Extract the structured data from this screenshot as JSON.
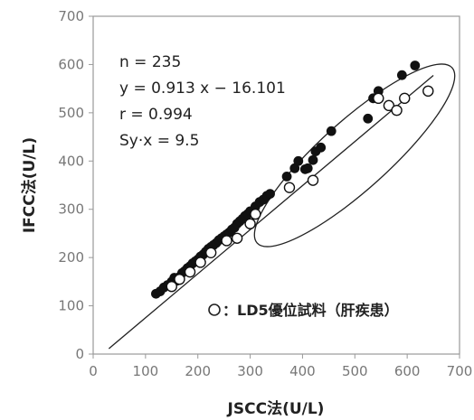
{
  "chart_data": {
    "type": "scatter",
    "xlabel": "JSCC法(U/L)",
    "ylabel": "IFCC法(U/L)",
    "xlim": [
      0,
      700
    ],
    "ylim": [
      0,
      700
    ],
    "x_ticks": [
      "0",
      "100",
      "200",
      "300",
      "400",
      "500",
      "600",
      "700"
    ],
    "y_ticks": [
      "0",
      "100",
      "200",
      "300",
      "400",
      "500",
      "600",
      "700"
    ],
    "grid": false,
    "stats": {
      "n": "n = 235",
      "equation": "y = 0.913 x − 16.101",
      "r": "r = 0.994",
      "syx": "Sy·x = 9.5"
    },
    "legend_text": "：LD5優位試料（肝疾患）",
    "regression": {
      "slope": 0.913,
      "intercept": -16.101,
      "x_range": [
        30,
        650
      ]
    },
    "series": [
      {
        "marker": "filled",
        "points": [
          [
            120,
            125
          ],
          [
            128,
            130
          ],
          [
            135,
            138
          ],
          [
            142,
            143
          ],
          [
            150,
            150
          ],
          [
            155,
            158
          ],
          [
            160,
            152
          ],
          [
            165,
            160
          ],
          [
            170,
            168
          ],
          [
            175,
            172
          ],
          [
            180,
            178
          ],
          [
            185,
            182
          ],
          [
            190,
            188
          ],
          [
            195,
            192
          ],
          [
            200,
            196
          ],
          [
            205,
            202
          ],
          [
            210,
            206
          ],
          [
            215,
            212
          ],
          [
            220,
            218
          ],
          [
            225,
            222
          ],
          [
            230,
            226
          ],
          [
            235,
            230
          ],
          [
            240,
            236
          ],
          [
            245,
            240
          ],
          [
            250,
            244
          ],
          [
            255,
            248
          ],
          [
            260,
            252
          ],
          [
            265,
            258
          ],
          [
            270,
            262
          ],
          [
            275,
            270
          ],
          [
            280,
            275
          ],
          [
            285,
            280
          ],
          [
            290,
            286
          ],
          [
            295,
            290
          ],
          [
            300,
            296
          ],
          [
            310,
            306
          ],
          [
            318,
            315
          ],
          [
            325,
            320
          ],
          [
            332,
            328
          ],
          [
            338,
            332
          ],
          [
            370,
            368
          ],
          [
            385,
            385
          ],
          [
            392,
            400
          ],
          [
            405,
            383
          ],
          [
            410,
            385
          ],
          [
            420,
            402
          ],
          [
            425,
            420
          ],
          [
            435,
            428
          ],
          [
            455,
            462
          ],
          [
            525,
            488
          ],
          [
            535,
            530
          ],
          [
            545,
            545
          ],
          [
            590,
            578
          ],
          [
            615,
            598
          ]
        ]
      },
      {
        "marker": "open",
        "points": [
          [
            150,
            140
          ],
          [
            165,
            155
          ],
          [
            185,
            170
          ],
          [
            205,
            190
          ],
          [
            225,
            210
          ],
          [
            255,
            235
          ],
          [
            275,
            240
          ],
          [
            300,
            270
          ],
          [
            310,
            290
          ],
          [
            375,
            345
          ],
          [
            420,
            360
          ],
          [
            545,
            530
          ],
          [
            565,
            515
          ],
          [
            580,
            505
          ],
          [
            595,
            530
          ],
          [
            640,
            545
          ]
        ]
      }
    ]
  }
}
